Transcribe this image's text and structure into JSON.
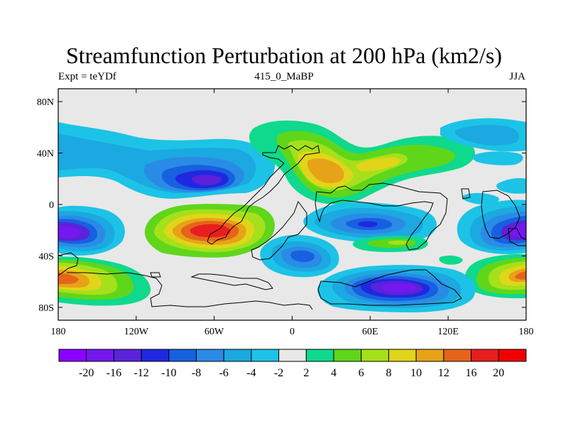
{
  "title": "Streamfunction Perturbation at 200 hPa (km2/s)",
  "left_string": "Expt = teYDf",
  "center_string": "415_0_MaBP",
  "right_string": "JJA",
  "chart_data": {
    "type": "filled-contour-map",
    "title": "Streamfunction Perturbation at 200 hPa (km2/s)",
    "units": "km2/s",
    "level_hPa": 200,
    "season": "JJA",
    "experiment": "teYDf",
    "run": "415_0_MaBP",
    "x_ticks": [
      {
        "value": -180,
        "label": "180"
      },
      {
        "value": -120,
        "label": "120W"
      },
      {
        "value": -60,
        "label": "60W"
      },
      {
        "value": 0,
        "label": "0"
      },
      {
        "value": 60,
        "label": "60E"
      },
      {
        "value": 120,
        "label": "120E"
      },
      {
        "value": 180,
        "label": "180"
      }
    ],
    "y_ticks": [
      {
        "value": 80,
        "label": "80N"
      },
      {
        "value": 40,
        "label": "40N"
      },
      {
        "value": 0,
        "label": "0"
      },
      {
        "value": -40,
        "label": "40S"
      },
      {
        "value": -80,
        "label": "80S"
      }
    ],
    "xlim": [
      -180,
      180
    ],
    "ylim": [
      -90,
      90
    ],
    "colorbar": {
      "labels": [
        "-20",
        "-16",
        "-12",
        "-10",
        "-8",
        "-6",
        "-4",
        "-2",
        "2",
        "4",
        "6",
        "8",
        "10",
        "12",
        "16",
        "20"
      ],
      "colors": [
        "#8B00FF",
        "#7518F0",
        "#5A23D9",
        "#1F28E0",
        "#1760E0",
        "#2A8BE6",
        "#1CA8E0",
        "#1CC3E6",
        "#E8E8E8",
        "#0FD98C",
        "#5FD61A",
        "#A6E01A",
        "#E0D51A",
        "#E6A317",
        "#E6641A",
        "#E81E1E",
        "#F00000"
      ]
    },
    "features": [
      {
        "name": "north-pacific-low",
        "lon": -145,
        "lat": 15,
        "value": -8
      },
      {
        "name": "north-america-low",
        "lon": -70,
        "lat": 18,
        "value": -16
      },
      {
        "name": "south-america-high",
        "lon": -50,
        "lat": -20,
        "value": 16
      },
      {
        "name": "south-pacific-low-west",
        "lon": -175,
        "lat": -25,
        "value": -16
      },
      {
        "name": "south-pacific-low-east",
        "lon": 175,
        "lat": -25,
        "value": -16
      },
      {
        "name": "southeast-pacific-high-west",
        "lon": -175,
        "lat": -55,
        "value": 12
      },
      {
        "name": "southeast-pacific-high-east",
        "lon": 175,
        "lat": -55,
        "value": 12
      },
      {
        "name": "europe-high",
        "lon": 30,
        "lat": 24,
        "value": 10
      },
      {
        "name": "east-asia-high",
        "lon": 90,
        "lat": 45,
        "value": 4
      },
      {
        "name": "indian-ocean-low",
        "lon": 60,
        "lat": -18,
        "value": -10
      },
      {
        "name": "southern-ocean-low",
        "lon": 90,
        "lat": -65,
        "value": -16
      },
      {
        "name": "south-atlantic-low",
        "lon": 15,
        "lat": -40,
        "value": -6
      },
      {
        "name": "southeast-asia-high",
        "lon": 100,
        "lat": -30,
        "value": 4
      },
      {
        "name": "north-pacific-low-east",
        "lon": 155,
        "lat": 45,
        "value": -4
      }
    ]
  }
}
